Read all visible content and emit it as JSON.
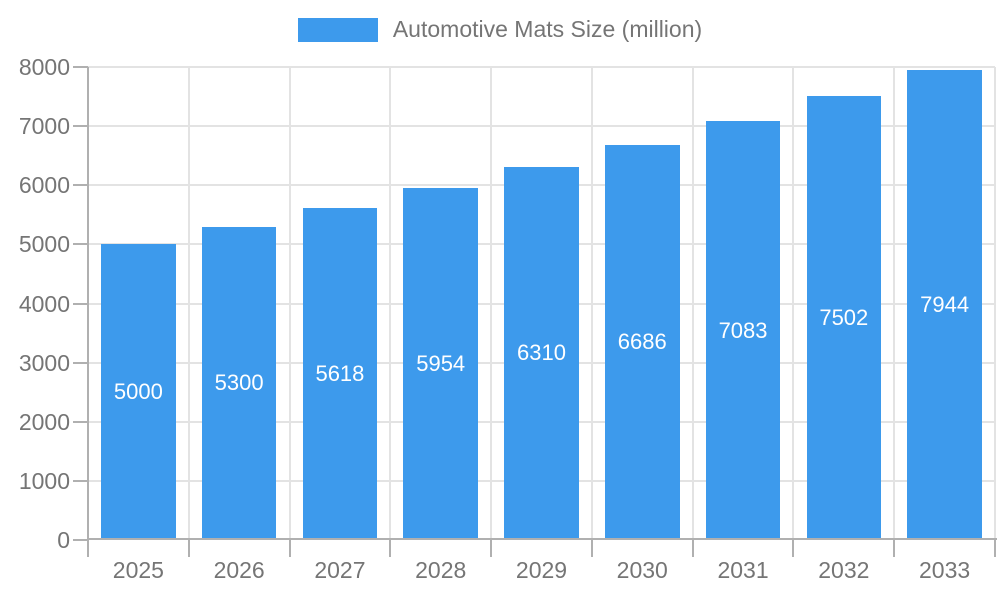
{
  "legend": {
    "label": "Automotive Mats Size (million)"
  },
  "colors": {
    "bar": "#3D9AEC",
    "axis": "#b0b0b0",
    "grid": "#e3e3e3",
    "tick_label": "#757575",
    "bar_label": "#ffffff"
  },
  "chart_data": {
    "type": "bar",
    "title": "Automotive Mats Size (million)",
    "categories": [
      "2025",
      "2026",
      "2027",
      "2028",
      "2029",
      "2030",
      "2031",
      "2032",
      "2033"
    ],
    "values": [
      5000,
      5300,
      5618,
      5954,
      6310,
      6686,
      7083,
      7502,
      7944
    ],
    "xlabel": "",
    "ylabel": "",
    "ylim": [
      0,
      8000
    ],
    "ytick_step": 1000,
    "yticks": [
      0,
      1000,
      2000,
      3000,
      4000,
      5000,
      6000,
      7000,
      8000
    ],
    "grid": true,
    "legend_position": "top-center",
    "value_labels": "inside-center-white"
  }
}
